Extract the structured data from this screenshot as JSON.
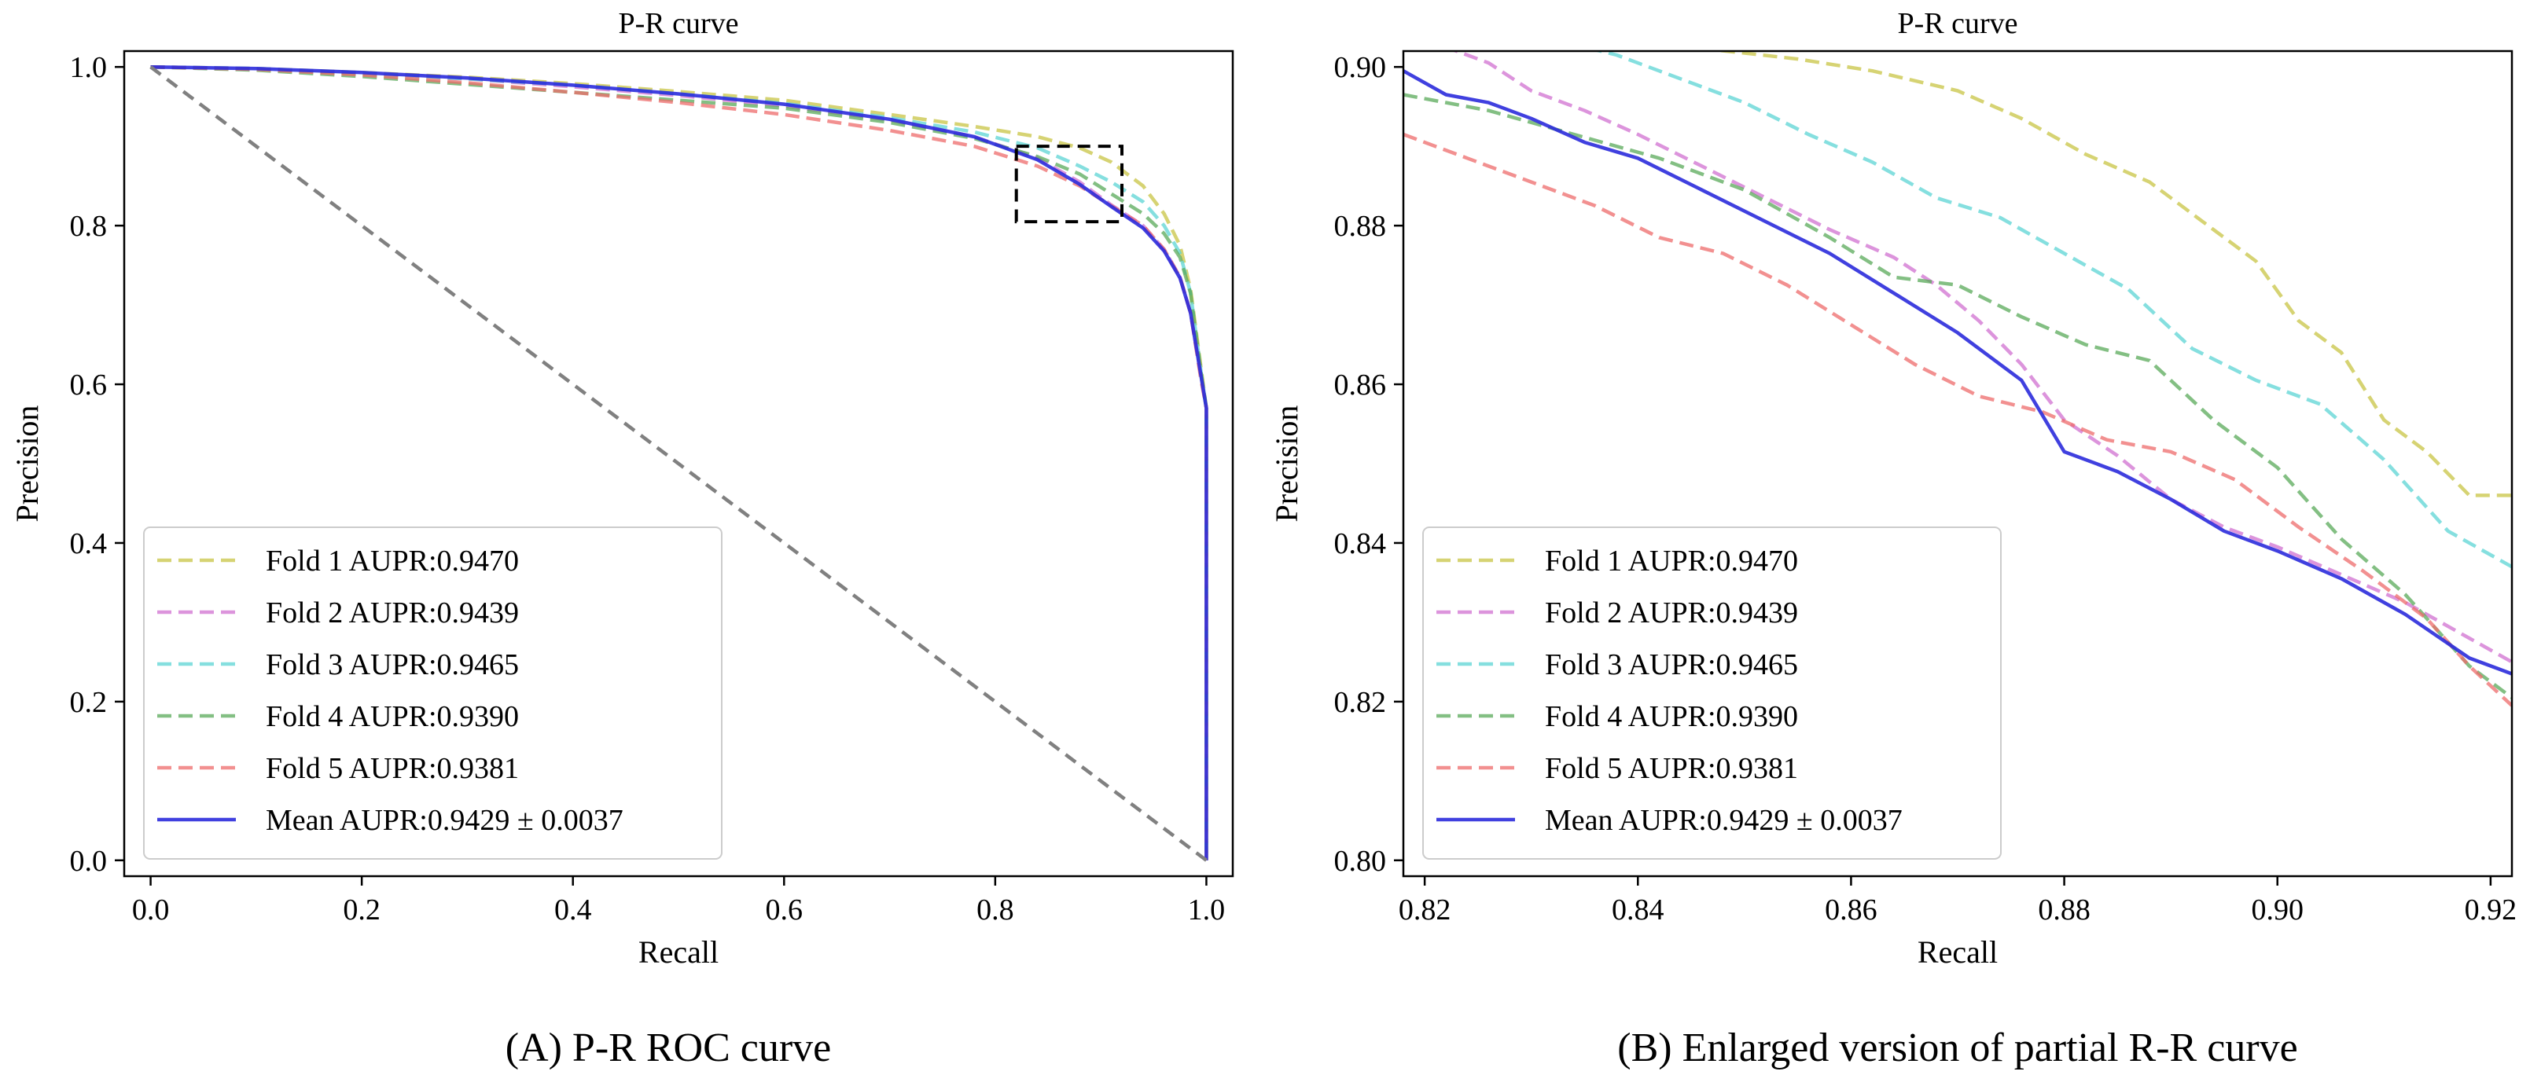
{
  "chart_data": [
    {
      "type": "line",
      "title": "P-R curve",
      "caption": "(A) P-R ROC curve",
      "xlabel": "Recall",
      "ylabel": "Precision",
      "xlim": [
        -0.025,
        1.025
      ],
      "ylim": [
        -0.02,
        1.02
      ],
      "xticks": [
        0.0,
        0.2,
        0.4,
        0.6,
        0.8,
        1.0
      ],
      "xtick_labels": [
        "0.0",
        "0.2",
        "0.4",
        "0.6",
        "0.8",
        "1.0"
      ],
      "yticks": [
        0.0,
        0.2,
        0.4,
        0.6,
        0.8,
        1.0
      ],
      "ytick_labels": [
        "0.0",
        "0.2",
        "0.4",
        "0.6",
        "0.8",
        "1.0"
      ],
      "legend_position": "lower-left",
      "legend_labels": [
        "Fold 1 AUPR:0.9470",
        "Fold 2 AUPR:0.9439",
        "Fold 3 AUPR:0.9465",
        "Fold 4 AUPR:0.9390",
        "Fold 5 AUPR:0.9381",
        "Mean AUPR:0.9429 ± 0.0037"
      ],
      "series": [
        {
          "name": "Fold 1",
          "color": "#c8c444",
          "style": "dashed",
          "x": [
            0,
            0.1,
            0.2,
            0.3,
            0.4,
            0.5,
            0.6,
            0.7,
            0.78,
            0.84,
            0.88,
            0.91,
            0.94,
            0.96,
            0.975,
            0.985,
            0.995,
            1.0,
            1.0
          ],
          "y": [
            1.0,
            0.998,
            0.993,
            0.987,
            0.979,
            0.969,
            0.958,
            0.94,
            0.925,
            0.912,
            0.898,
            0.88,
            0.85,
            0.815,
            0.775,
            0.72,
            0.62,
            0.57,
            0.0
          ]
        },
        {
          "name": "Fold 2",
          "color": "#d070d0",
          "style": "dashed",
          "x": [
            0,
            0.1,
            0.2,
            0.3,
            0.4,
            0.5,
            0.6,
            0.7,
            0.78,
            0.84,
            0.88,
            0.91,
            0.94,
            0.96,
            0.975,
            0.985,
            0.995,
            1.0,
            1.0
          ],
          "y": [
            1.0,
            0.998,
            0.992,
            0.985,
            0.975,
            0.964,
            0.951,
            0.933,
            0.912,
            0.885,
            0.855,
            0.826,
            0.8,
            0.77,
            0.735,
            0.69,
            0.61,
            0.57,
            0.0
          ]
        },
        {
          "name": "Fold 3",
          "color": "#5cd4d4",
          "style": "dashed",
          "x": [
            0,
            0.1,
            0.2,
            0.3,
            0.4,
            0.5,
            0.6,
            0.7,
            0.78,
            0.84,
            0.88,
            0.91,
            0.94,
            0.96,
            0.975,
            0.985,
            0.995,
            1.0,
            1.0
          ],
          "y": [
            1.0,
            0.998,
            0.992,
            0.985,
            0.977,
            0.966,
            0.954,
            0.936,
            0.918,
            0.898,
            0.875,
            0.855,
            0.83,
            0.8,
            0.765,
            0.715,
            0.615,
            0.57,
            0.0
          ]
        },
        {
          "name": "Fold 4",
          "color": "#5aaa5a",
          "style": "dashed",
          "x": [
            0,
            0.1,
            0.2,
            0.3,
            0.4,
            0.5,
            0.6,
            0.7,
            0.78,
            0.84,
            0.88,
            0.91,
            0.94,
            0.96,
            0.975,
            0.985,
            0.995,
            1.0,
            1.0
          ],
          "y": [
            1.0,
            0.996,
            0.988,
            0.978,
            0.968,
            0.958,
            0.948,
            0.93,
            0.91,
            0.887,
            0.865,
            0.84,
            0.815,
            0.79,
            0.76,
            0.715,
            0.615,
            0.57,
            0.0
          ]
        },
        {
          "name": "Fold 5",
          "color": "#ee6b6b",
          "style": "dashed",
          "x": [
            0,
            0.1,
            0.2,
            0.3,
            0.4,
            0.5,
            0.6,
            0.7,
            0.78,
            0.84,
            0.88,
            0.91,
            0.94,
            0.96,
            0.975,
            0.985,
            0.995,
            1.0,
            1.0
          ],
          "y": [
            1.0,
            0.997,
            0.99,
            0.98,
            0.968,
            0.955,
            0.94,
            0.92,
            0.9,
            0.875,
            0.85,
            0.825,
            0.8,
            0.77,
            0.735,
            0.69,
            0.605,
            0.57,
            0.0
          ]
        },
        {
          "name": "Mean",
          "color": "#2b2bdc",
          "style": "solid",
          "x": [
            0,
            0.1,
            0.2,
            0.3,
            0.4,
            0.5,
            0.6,
            0.7,
            0.78,
            0.84,
            0.88,
            0.91,
            0.94,
            0.96,
            0.975,
            0.985,
            0.995,
            1.0,
            1.0
          ],
          "y": [
            1.0,
            0.998,
            0.993,
            0.986,
            0.977,
            0.966,
            0.953,
            0.934,
            0.912,
            0.883,
            0.852,
            0.824,
            0.797,
            0.768,
            0.734,
            0.69,
            0.61,
            0.57,
            0.0
          ]
        },
        {
          "name": "Baseline",
          "color": "#808080",
          "style": "dashed",
          "x": [
            0,
            1.0
          ],
          "y": [
            1.0,
            0.0
          ]
        }
      ],
      "zoom_box": {
        "x": [
          0.82,
          0.92
        ],
        "y": [
          0.805,
          0.9
        ]
      }
    },
    {
      "type": "line",
      "title": "P-R curve",
      "caption": "(B) Enlarged version of partial R-R curve",
      "xlabel": "Recall",
      "ylabel": "Precision",
      "xlim": [
        0.818,
        0.922
      ],
      "ylim": [
        0.798,
        0.902
      ],
      "xticks": [
        0.82,
        0.84,
        0.86,
        0.88,
        0.9,
        0.92
      ],
      "xtick_labels": [
        "0.82",
        "0.84",
        "0.86",
        "0.88",
        "0.90",
        "0.92"
      ],
      "yticks": [
        0.8,
        0.82,
        0.84,
        0.86,
        0.88,
        0.9
      ],
      "ytick_labels": [
        "0.80",
        "0.82",
        "0.84",
        "0.86",
        "0.88",
        "0.90"
      ],
      "legend_position": "lower-left",
      "legend_labels": [
        "Fold 1 AUPR:0.9470",
        "Fold 2 AUPR:0.9439",
        "Fold 3 AUPR:0.9465",
        "Fold 4 AUPR:0.9390",
        "Fold 5 AUPR:0.9381",
        "Mean AUPR:0.9429 ± 0.0037"
      ],
      "series": [
        {
          "name": "Fold 1",
          "color": "#c8c444",
          "style": "dashed",
          "x": [
            0.818,
            0.835,
            0.845,
            0.855,
            0.862,
            0.87,
            0.876,
            0.882,
            0.888,
            0.894,
            0.898,
            0.902,
            0.906,
            0.91,
            0.914,
            0.918,
            0.922
          ],
          "y": [
            0.9045,
            0.904,
            0.9025,
            0.901,
            0.8995,
            0.897,
            0.8935,
            0.889,
            0.8855,
            0.8795,
            0.8755,
            0.868,
            0.864,
            0.8555,
            0.8515,
            0.846,
            0.846
          ]
        },
        {
          "name": "Fold 2",
          "color": "#d070d0",
          "style": "dashed",
          "x": [
            0.818,
            0.822,
            0.826,
            0.83,
            0.835,
            0.84,
            0.846,
            0.852,
            0.858,
            0.864,
            0.868,
            0.872,
            0.876,
            0.88,
            0.885,
            0.89,
            0.895,
            0.9,
            0.906,
            0.912,
            0.918,
            0.922
          ],
          "y": [
            0.904,
            0.9025,
            0.9005,
            0.897,
            0.8945,
            0.8915,
            0.8875,
            0.8835,
            0.8795,
            0.876,
            0.8725,
            0.868,
            0.8625,
            0.8555,
            0.851,
            0.8455,
            0.842,
            0.8395,
            0.836,
            0.8325,
            0.828,
            0.825
          ]
        },
        {
          "name": "Fold 3",
          "color": "#5cd4d4",
          "style": "dashed",
          "x": [
            0.818,
            0.825,
            0.832,
            0.838,
            0.844,
            0.85,
            0.856,
            0.862,
            0.868,
            0.874,
            0.88,
            0.886,
            0.892,
            0.898,
            0.904,
            0.91,
            0.916,
            0.922
          ],
          "y": [
            0.9085,
            0.9065,
            0.9035,
            0.9015,
            0.8985,
            0.8955,
            0.8915,
            0.888,
            0.8835,
            0.881,
            0.8765,
            0.872,
            0.8645,
            0.8605,
            0.8575,
            0.8505,
            0.8415,
            0.837
          ]
        },
        {
          "name": "Fold 4",
          "color": "#5aaa5a",
          "style": "dashed",
          "x": [
            0.818,
            0.826,
            0.834,
            0.842,
            0.85,
            0.858,
            0.864,
            0.87,
            0.876,
            0.882,
            0.888,
            0.894,
            0.9,
            0.906,
            0.912,
            0.918,
            0.922
          ],
          "y": [
            0.8965,
            0.8945,
            0.8915,
            0.8885,
            0.8845,
            0.8785,
            0.8735,
            0.8725,
            0.8685,
            0.865,
            0.863,
            0.8555,
            0.8495,
            0.8405,
            0.8335,
            0.8245,
            0.8205
          ]
        },
        {
          "name": "Fold 5",
          "color": "#ee6b6b",
          "style": "dashed",
          "x": [
            0.818,
            0.824,
            0.83,
            0.836,
            0.842,
            0.848,
            0.854,
            0.86,
            0.866,
            0.872,
            0.878,
            0.884,
            0.89,
            0.896,
            0.902,
            0.908,
            0.914,
            0.918,
            0.922
          ],
          "y": [
            0.8915,
            0.8885,
            0.8855,
            0.8825,
            0.8785,
            0.8765,
            0.8725,
            0.8675,
            0.8625,
            0.8585,
            0.8565,
            0.853,
            0.8515,
            0.848,
            0.842,
            0.8365,
            0.8305,
            0.8245,
            0.8195
          ]
        },
        {
          "name": "Mean",
          "color": "#2b2bdc",
          "style": "solid",
          "x": [
            0.818,
            0.822,
            0.826,
            0.83,
            0.835,
            0.84,
            0.846,
            0.852,
            0.858,
            0.864,
            0.87,
            0.876,
            0.88,
            0.885,
            0.89,
            0.895,
            0.9,
            0.906,
            0.912,
            0.918,
            0.922
          ],
          "y": [
            0.8995,
            0.8965,
            0.8955,
            0.8935,
            0.8905,
            0.8885,
            0.8845,
            0.8805,
            0.8765,
            0.8715,
            0.8665,
            0.8605,
            0.8515,
            0.849,
            0.8455,
            0.8415,
            0.839,
            0.8355,
            0.831,
            0.8255,
            0.8235
          ]
        }
      ]
    }
  ]
}
